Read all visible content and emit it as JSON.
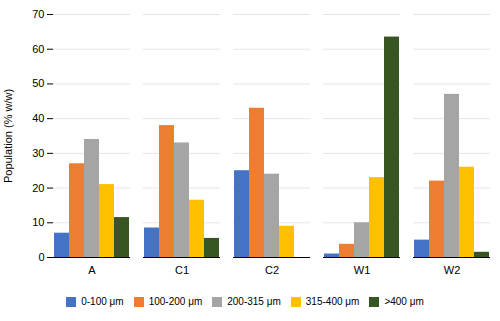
{
  "chart_data": {
    "type": "bar",
    "categories": [
      "A",
      "C1",
      "C2",
      "W1",
      "W2"
    ],
    "series": [
      {
        "name": "0-100 μm",
        "color": "#4472C4",
        "values": [
          7,
          8.5,
          25,
          1,
          5
        ]
      },
      {
        "name": "100-200 μm",
        "color": "#ED7D31",
        "values": [
          27,
          38,
          43,
          3.8,
          22
        ]
      },
      {
        "name": "200-315 μm",
        "color": "#A5A5A5",
        "values": [
          34,
          33,
          24,
          10,
          47
        ]
      },
      {
        "name": "315-400 μm",
        "color": "#FFC000",
        "values": [
          21,
          16.5,
          9,
          23,
          26
        ]
      },
      {
        "name": ">400 μm",
        "color": "#375623",
        "values": [
          11.5,
          5.5,
          0,
          63.5,
          1.5
        ]
      }
    ],
    "ylabel": "Population (% w/w)",
    "ylim": [
      0,
      70
    ],
    "yticks": [
      0,
      10,
      20,
      30,
      40,
      50,
      60,
      70
    ],
    "grid": true,
    "legend": "bottom"
  }
}
